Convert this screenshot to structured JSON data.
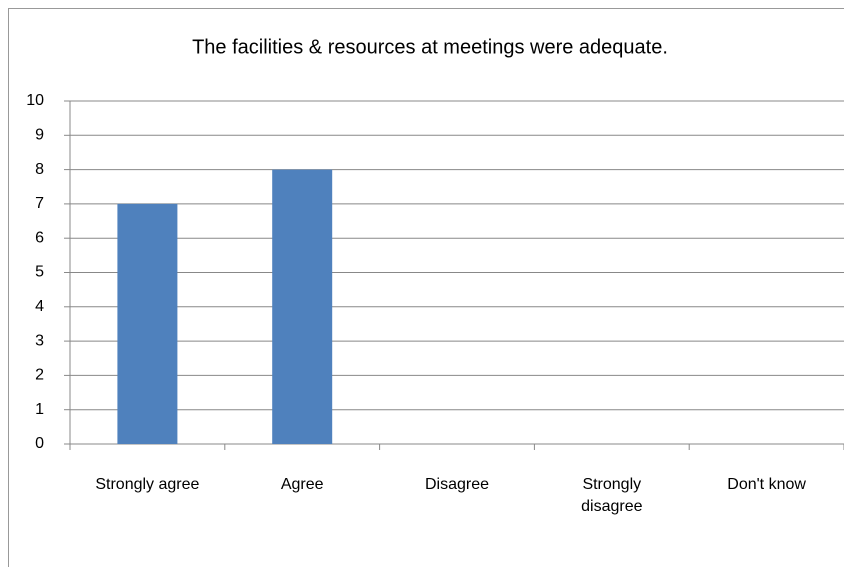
{
  "chart_data": {
    "type": "bar",
    "title": "The facilities & resources at meetings were adequate.",
    "categories": [
      "Strongly agree",
      "Agree",
      "Disagree",
      "Strongly disagree",
      "Don't know"
    ],
    "values": [
      7,
      8,
      0,
      0,
      0
    ],
    "color": "#4f81bd",
    "ylim": [
      0,
      10
    ],
    "yticks": [
      0,
      1,
      2,
      3,
      4,
      5,
      6,
      7,
      8,
      9,
      10
    ],
    "grid": true
  }
}
